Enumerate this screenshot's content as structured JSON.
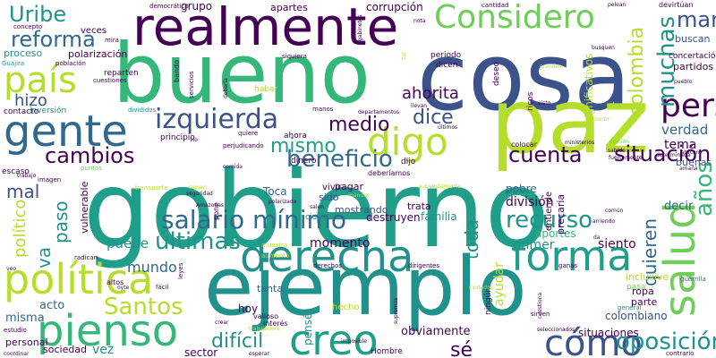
{
  "palette": {
    "dark_purple": "#440154",
    "indigo": "#3b528b",
    "blue": "#31688e",
    "teal": "#21918c",
    "sea_green": "#1f9e89",
    "green": "#35b779",
    "light_green": "#6ece58",
    "lime": "#b5de2b",
    "yellow": "#d8e219"
  },
  "words": [
    "gobierno",
    "ejemplo",
    "cosa",
    "bueno",
    "paz",
    "realmente",
    "gente",
    "derecha",
    "política",
    "pienso",
    "forma",
    "creo",
    "Considero",
    "país",
    "izquierda",
    "digo",
    "cómo",
    "persona",
    "salario mínimo",
    "cambios",
    "últimas",
    "Santos",
    "oposición",
    "Uribe",
    "reforma",
    "difícil",
    "sé",
    "cuenta",
    "situación",
    "recurso",
    "mismo",
    "beneficio",
    "medio",
    "dice",
    "manejado",
    "mal",
    "hizo",
    "ahorita",
    "mundo",
    "puede",
    "salud",
    "muchas",
    "colombia",
    "toda",
    "paso",
    "va",
    "político",
    "quieren",
    "años",
    "verdad",
    "tema",
    "decir",
    "división",
    "momento",
    "siento",
    "primer",
    "aportes",
    "pobre",
    "familia",
    "destruyen",
    "trata",
    "pagar",
    "mostrando",
    "vivir",
    "sido",
    "Toca",
    "tanta",
    "hoy",
    "acto",
    "misma",
    "personal",
    "sociedad",
    "vez",
    "sector",
    "obviamente",
    "situaciones",
    "colombiano",
    "hecho",
    "apartes",
    "grupo",
    "corrupción",
    "veces",
    "polarización",
    "proceso",
    "partidos",
    "buscan",
    "buenas",
    "inclusive",
    "ropa",
    "parte",
    "pasa",
    "general",
    "sirven",
    "guerrilla",
    "contrario",
    "ayudar",
    "pensé",
    "vulnerable",
    "precaria",
    "entiende",
    "significativos",
    "devirtúan",
    "ningún",
    "deseo",
    "ricos",
    "democrático",
    "concepto",
    "mira",
    "Guajira",
    "población",
    "reparten",
    "cuestiones",
    "inversión",
    "divididos",
    "quiere",
    "ahora",
    "dijo",
    "deberíamos",
    "imagen",
    "puntos",
    "escaso",
    "comida",
    "seguridad",
    "Amazonas",
    "polarizada",
    "ciudad",
    "salen",
    "mandos",
    "supuestamente",
    "transporte",
    "siguen",
    "fácil",
    "muestra",
    "aumentó",
    "derechos",
    "dirigentes",
    "ganas",
    "radican",
    "veo",
    "altos",
    "oyte",
    "valioso",
    "trabajadora",
    "crear",
    "interés",
    "estudio",
    "coordinar",
    "imposible",
    "Hombre",
    "esperar",
    "seleccionados",
    "ciudades",
    "periodo",
    "dicen",
    "manos",
    "haber",
    "llevan",
    "departamentos",
    "últimos",
    "cantidad",
    "colocar",
    "ministerios",
    "sabido",
    "fuertemente",
    "determinada",
    "atacan",
    "opinión",
    "amaña",
    "pueblo",
    "sentir",
    "busquen",
    "concertación",
    "gabinetes",
    "siquiera",
    "debería",
    "servicios",
    "bando",
    "nota",
    "vio",
    "perjudicando",
    "principio",
    "dinero",
    "trabajo",
    "contacto",
    "visto",
    "grandes",
    "tal",
    "común",
    "da",
    "arriendo",
    "pelean",
    "cuestiona",
    "supremas",
    "pone",
    "leyes"
  ]
}
